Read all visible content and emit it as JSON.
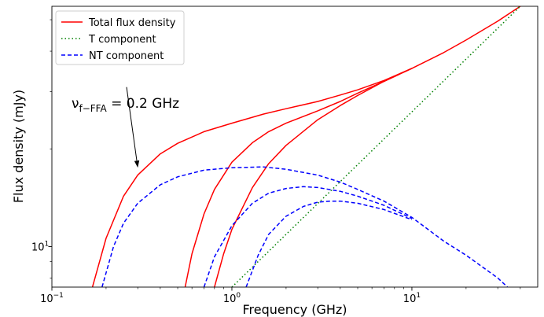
{
  "chart_data": {
    "type": "line",
    "xlabel": "Frequency (GHz)",
    "ylabel": "Flux density (mJy)",
    "xscale": "log",
    "yscale": "log",
    "xlim": [
      0.1,
      50
    ],
    "ylim": [
      7.5,
      55
    ],
    "grid": false,
    "legend_position": "top-left",
    "x_ticks": [
      {
        "value": 0.1,
        "base": "10",
        "exp": "−1"
      },
      {
        "value": 1,
        "base": "10",
        "exp": "0"
      },
      {
        "value": 10,
        "base": "10",
        "exp": "1"
      }
    ],
    "y_ticks": [
      {
        "value": 10,
        "base": "10",
        "exp": "1"
      }
    ],
    "legend": [
      {
        "label": "Total flux density",
        "color": "#ff0000",
        "style": "solid"
      },
      {
        "label": "T component",
        "color": "#008000",
        "style": "dotted"
      },
      {
        "label": "NT component",
        "color": "#0000ff",
        "style": "dashed"
      }
    ],
    "annotation": {
      "prefix": "ν",
      "subscript": "f−FFA",
      "suffix": " = 0.2 GHz",
      "arrow_from": {
        "x": 0.26,
        "y": 31
      },
      "arrow_to": {
        "x": 0.3,
        "y": 17.5
      }
    },
    "series": [
      {
        "component": "total",
        "color": "#ff0000",
        "style": "solid",
        "nu_ffa": 0.2,
        "x": [
          0.168,
          0.2,
          0.25,
          0.3,
          0.4,
          0.5,
          0.7,
          1.0,
          1.5,
          2,
          3,
          4,
          5,
          7,
          10,
          15,
          20,
          30,
          40
        ],
        "y": [
          7.5,
          10.6,
          14.3,
          16.6,
          19.3,
          20.8,
          22.6,
          24.0,
          25.6,
          26.6,
          28.0,
          29.3,
          30.4,
          32.5,
          35.4,
          39.6,
          43.3,
          49.5,
          55
        ]
      },
      {
        "component": "total",
        "color": "#ff0000",
        "style": "solid",
        "nu_ffa": 0.6,
        "x": [
          0.55,
          0.6,
          0.7,
          0.8,
          1.0,
          1.3,
          1.6,
          2,
          3,
          4,
          5,
          7,
          10
        ],
        "y": [
          7.5,
          9.5,
          12.6,
          15.0,
          18.2,
          20.9,
          22.6,
          24.0,
          26.2,
          28.0,
          29.7,
          32.3,
          35.4
        ]
      },
      {
        "component": "total",
        "color": "#ff0000",
        "style": "solid",
        "nu_ffa": 0.9,
        "x": [
          0.8,
          0.9,
          1.0,
          1.3,
          1.6,
          2,
          3,
          4,
          5,
          7,
          10
        ],
        "y": [
          7.5,
          9.5,
          11.3,
          15.2,
          18.0,
          20.5,
          24.6,
          27.2,
          29.2,
          32.3,
          35.4
        ]
      },
      {
        "component": "T",
        "color": "#008000",
        "style": "dotted",
        "x": [
          1.0,
          40
        ],
        "y": [
          7.5,
          55
        ]
      },
      {
        "component": "NT",
        "color": "#0000ff",
        "style": "dashed",
        "nu_ffa": 0.2,
        "x": [
          0.19,
          0.22,
          0.25,
          0.3,
          0.4,
          0.5,
          0.7,
          1.0,
          1.5,
          2,
          3,
          4,
          5,
          7,
          10,
          15,
          20,
          30,
          34
        ],
        "y": [
          7.5,
          10.0,
          11.8,
          13.6,
          15.5,
          16.4,
          17.2,
          17.5,
          17.6,
          17.3,
          16.6,
          15.8,
          15.0,
          13.8,
          12.3,
          10.4,
          9.4,
          8.0,
          7.5
        ]
      },
      {
        "component": "NT",
        "color": "#0000ff",
        "style": "dashed",
        "nu_ffa": 0.6,
        "x": [
          0.7,
          0.8,
          1.0,
          1.3,
          1.6,
          2,
          2.5,
          3,
          4,
          5,
          7,
          10
        ],
        "y": [
          7.5,
          9.3,
          11.6,
          13.6,
          14.6,
          15.1,
          15.3,
          15.2,
          14.8,
          14.3,
          13.4,
          12.2
        ]
      },
      {
        "component": "NT",
        "color": "#0000ff",
        "style": "dashed",
        "nu_ffa": 0.9,
        "x": [
          1.2,
          1.4,
          1.6,
          2,
          2.5,
          3,
          3.5,
          4,
          5,
          7,
          10
        ],
        "y": [
          7.5,
          9.4,
          10.9,
          12.4,
          13.3,
          13.7,
          13.8,
          13.8,
          13.6,
          13.0,
          12.1
        ]
      }
    ]
  }
}
